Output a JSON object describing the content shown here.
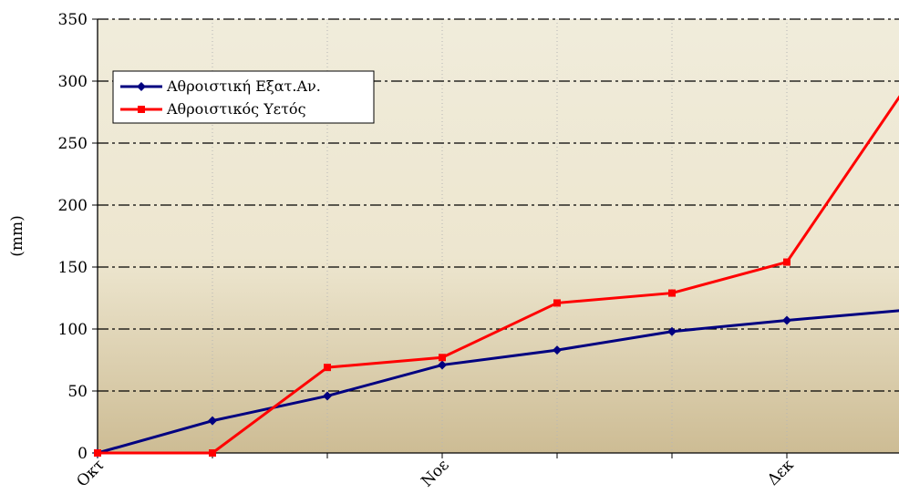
{
  "chart_data": {
    "type": "line",
    "ylabel": "(mm)",
    "ylim": [
      0,
      350
    ],
    "yticks": [
      "0",
      "50",
      "100",
      "150",
      "200",
      "250",
      "300",
      "350"
    ],
    "x_tick_labels": [
      "Οκτ",
      "Νοε",
      "Δεκ"
    ],
    "x_tick_label_positions": [
      0,
      3,
      6
    ],
    "x": [
      0,
      1,
      2,
      3,
      4,
      5,
      6,
      7
    ],
    "grid": "dash-dot horizontal, dotted vertical",
    "legend_placement": "top-left",
    "series": [
      {
        "name": "Αθροιστική Εξατ.Αν.",
        "color": "#000080",
        "marker": "diamond",
        "values": [
          0,
          26,
          46,
          71,
          83,
          98,
          107,
          115
        ]
      },
      {
        "name": "Αθροιστικός Υετός",
        "color": "#FF0000",
        "marker": "square",
        "values": [
          0,
          0,
          69,
          77,
          121,
          129,
          154,
          290
        ]
      }
    ]
  }
}
